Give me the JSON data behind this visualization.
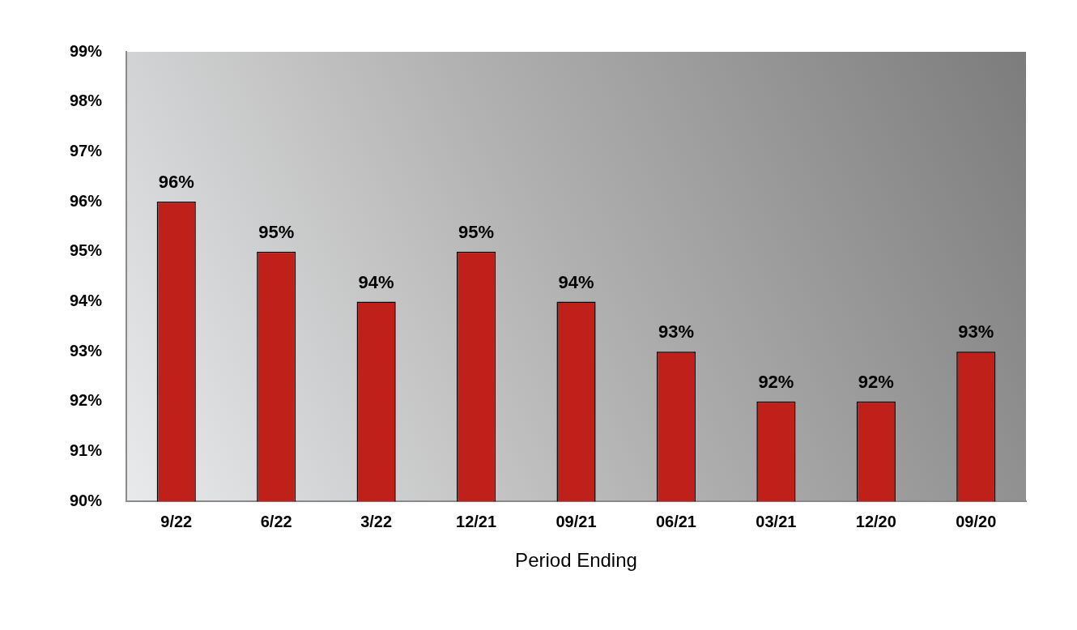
{
  "chart_data": {
    "type": "bar",
    "xlabel": "Period Ending",
    "categories": [
      "9/22",
      "6/22",
      "3/22",
      "12/21",
      "09/21",
      "06/21",
      "03/21",
      "12/20",
      "09/20"
    ],
    "values": [
      96,
      95,
      94,
      95,
      94,
      93,
      92,
      92,
      93
    ],
    "value_labels": [
      "96%",
      "95%",
      "94%",
      "95%",
      "94%",
      "93%",
      "92%",
      "92%",
      "93%"
    ],
    "color": "#c0201a",
    "ylim": [
      90,
      99
    ],
    "yticks": [
      {
        "value": 90,
        "label": "90%"
      },
      {
        "value": 91,
        "label": "91%"
      },
      {
        "value": 92,
        "label": "92%"
      },
      {
        "value": 93,
        "label": "93%"
      },
      {
        "value": 94,
        "label": "94%"
      },
      {
        "value": 95,
        "label": "95%"
      },
      {
        "value": 96,
        "label": "96%"
      },
      {
        "value": 97,
        "label": "97%"
      },
      {
        "value": 98,
        "label": "98%"
      },
      {
        "value": 99,
        "label": "99%"
      }
    ],
    "grid": false,
    "legend": false
  }
}
